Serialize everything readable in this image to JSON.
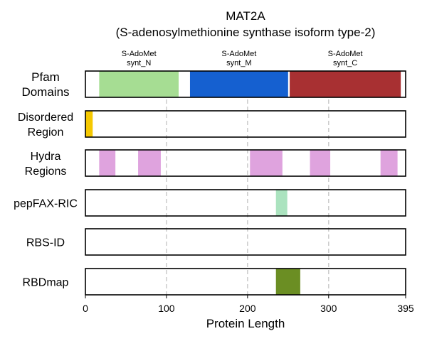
{
  "chart_data": {
    "type": "bar",
    "title": "MAT2A",
    "subtitle": "(S-adenosylmethionine synthase isoform type-2)",
    "xlabel": "Protein Length",
    "xlim": [
      0,
      395
    ],
    "xticks": [
      0,
      100,
      200,
      300,
      395
    ],
    "grid": "dashed vertical lines at 100, 200, 300",
    "tracks": [
      {
        "label_lines": [
          "Pfam",
          "Domains"
        ],
        "segments": [
          {
            "start": 17,
            "end": 115,
            "color": "#a6dd93",
            "label_lines": [
              "S-AdoMet",
              "synt_N"
            ]
          },
          {
            "start": 129,
            "end": 250,
            "color": "#1560d0",
            "label_lines": [
              "S-AdoMet",
              "synt_M"
            ]
          },
          {
            "start": 252,
            "end": 389,
            "color": "#a83032",
            "label_lines": [
              "S-AdoMet",
              "synt_C"
            ]
          }
        ]
      },
      {
        "label_lines": [
          "Disordered",
          "Region"
        ],
        "segments": [
          {
            "start": 0,
            "end": 9,
            "color": "#f5c800"
          }
        ]
      },
      {
        "label_lines": [
          "Hydra",
          "Regions"
        ],
        "segments": [
          {
            "start": 17,
            "end": 37,
            "color": "#dfa3de"
          },
          {
            "start": 65,
            "end": 93,
            "color": "#dfa3de"
          },
          {
            "start": 203,
            "end": 243,
            "color": "#dfa3de"
          },
          {
            "start": 277,
            "end": 302,
            "color": "#dfa3de"
          },
          {
            "start": 364,
            "end": 385,
            "color": "#dfa3de"
          }
        ]
      },
      {
        "label_lines": [
          "pepFAX-RIC"
        ],
        "segments": [
          {
            "start": 235,
            "end": 249,
            "color": "#abe3bf"
          }
        ]
      },
      {
        "label_lines": [
          "RBS-ID"
        ],
        "segments": []
      },
      {
        "label_lines": [
          "RBDmap"
        ],
        "segments": [
          {
            "start": 235,
            "end": 265,
            "color": "#6b8e23"
          }
        ]
      }
    ]
  }
}
